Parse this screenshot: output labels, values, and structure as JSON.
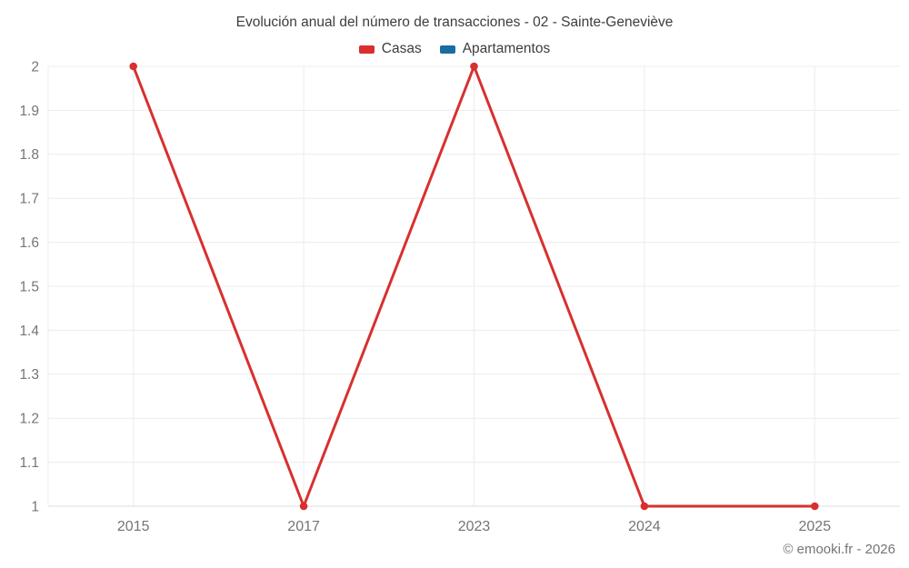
{
  "chart_data": {
    "type": "line",
    "title": "Evolución anual del número de transacciones - 02 - Sainte-Geneviève",
    "categories": [
      "2015",
      "2017",
      "2023",
      "2024",
      "2025"
    ],
    "series": [
      {
        "name": "Casas",
        "color": "#d7302f",
        "values": [
          2,
          1,
          2,
          1,
          1
        ]
      },
      {
        "name": "Apartamentos",
        "color": "#1a6da0",
        "values": []
      }
    ],
    "ylim": [
      1,
      2
    ],
    "yticks": [
      "1",
      "1.1",
      "1.2",
      "1.3",
      "1.4",
      "1.5",
      "1.6",
      "1.7",
      "1.8",
      "1.9",
      "2"
    ],
    "xlabel": "",
    "ylabel": "",
    "grid": true,
    "legend_position": "top"
  },
  "footer": {
    "copyright": "© emooki.fr - 2026"
  },
  "colors": {
    "grid": "#ececec",
    "axis": "#dcdcdc",
    "tick_text": "#757575",
    "title_text": "#3d3d3d"
  }
}
